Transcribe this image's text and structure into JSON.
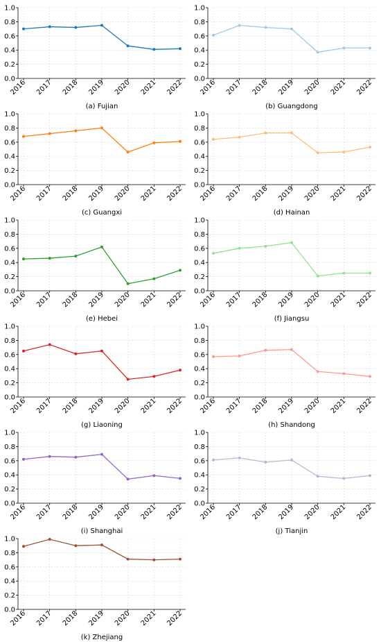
{
  "chart_data": [
    {
      "type": "line",
      "caption": "(a) Fujian",
      "categories": [
        "2016",
        "2017",
        "2018",
        "2019",
        "2020",
        "2021",
        "2022"
      ],
      "values": [
        0.7,
        0.73,
        0.72,
        0.75,
        0.46,
        0.41,
        0.42
      ],
      "ylim": [
        0,
        1.0
      ],
      "yticks": [
        "0.0",
        "0.2",
        "0.4",
        "0.6",
        "0.8",
        "1.0"
      ],
      "color": "#1f77b4",
      "grid": true
    },
    {
      "type": "line",
      "caption": "(b) Guangdong",
      "categories": [
        "2016",
        "2017",
        "2018",
        "2019",
        "2020",
        "2021",
        "2022"
      ],
      "values": [
        0.61,
        0.75,
        0.72,
        0.7,
        0.37,
        0.43,
        0.43
      ],
      "ylim": [
        0,
        1.0
      ],
      "yticks": [
        "0.0",
        "0.2",
        "0.4",
        "0.6",
        "0.8",
        "1.0"
      ],
      "color": "#9ecae9",
      "grid": true
    },
    {
      "type": "line",
      "caption": "(c) Guangxi",
      "categories": [
        "2016",
        "2017",
        "2018",
        "2019",
        "2020",
        "2021",
        "2022"
      ],
      "values": [
        0.68,
        0.72,
        0.76,
        0.8,
        0.46,
        0.59,
        0.61
      ],
      "ylim": [
        0,
        1.0
      ],
      "yticks": [
        "0.0",
        "0.2",
        "0.4",
        "0.6",
        "0.8",
        "1.0"
      ],
      "color": "#ff7f0e",
      "grid": true
    },
    {
      "type": "line",
      "caption": "(d) Hainan",
      "categories": [
        "2016",
        "2017",
        "2018",
        "2019",
        "2020",
        "2021",
        "2022"
      ],
      "values": [
        0.64,
        0.67,
        0.73,
        0.73,
        0.45,
        0.46,
        0.53
      ],
      "ylim": [
        0,
        1.0
      ],
      "yticks": [
        "0.0",
        "0.2",
        "0.4",
        "0.6",
        "0.8",
        "1.0"
      ],
      "color": "#ffbb78",
      "grid": true
    },
    {
      "type": "line",
      "caption": "(e) Hebei",
      "categories": [
        "2016",
        "2017",
        "2018",
        "2019",
        "2020",
        "2021",
        "2022"
      ],
      "values": [
        0.45,
        0.46,
        0.49,
        0.62,
        0.1,
        0.17,
        0.29
      ],
      "ylim": [
        0,
        1.0
      ],
      "yticks": [
        "0.0",
        "0.2",
        "0.4",
        "0.6",
        "0.8",
        "1.0"
      ],
      "color": "#2ca02c",
      "grid": true
    },
    {
      "type": "line",
      "caption": "(f) Jiangsu",
      "categories": [
        "2016",
        "2017",
        "2018",
        "2019",
        "2020",
        "2021",
        "2022"
      ],
      "values": [
        0.53,
        0.6,
        0.63,
        0.68,
        0.21,
        0.25,
        0.25
      ],
      "ylim": [
        0,
        1.0
      ],
      "yticks": [
        "0.0",
        "0.2",
        "0.4",
        "0.6",
        "0.8",
        "1.0"
      ],
      "color": "#8fe38f",
      "grid": true
    },
    {
      "type": "line",
      "caption": "(g) Liaoning",
      "categories": [
        "2016",
        "2017",
        "2018",
        "2019",
        "2020",
        "2021",
        "2022"
      ],
      "values": [
        0.65,
        0.74,
        0.61,
        0.65,
        0.25,
        0.29,
        0.38
      ],
      "ylim": [
        0,
        1.0
      ],
      "yticks": [
        "0.0",
        "0.2",
        "0.4",
        "0.6",
        "0.8",
        "1.0"
      ],
      "color": "#d62728",
      "grid": true
    },
    {
      "type": "line",
      "caption": "(h) Shandong",
      "categories": [
        "2016",
        "2017",
        "2018",
        "2019",
        "2020",
        "2021",
        "2022"
      ],
      "values": [
        0.57,
        0.58,
        0.66,
        0.67,
        0.36,
        0.33,
        0.29
      ],
      "ylim": [
        0,
        1.0
      ],
      "yticks": [
        "0.0",
        "0.2",
        "0.4",
        "0.6",
        "0.8",
        "1.0"
      ],
      "color": "#ff9896",
      "grid": true
    },
    {
      "type": "line",
      "caption": "(i) Shanghai",
      "categories": [
        "2016",
        "2017",
        "2018",
        "2019",
        "2020",
        "2021",
        "2022"
      ],
      "values": [
        0.62,
        0.66,
        0.65,
        0.69,
        0.34,
        0.39,
        0.35
      ],
      "ylim": [
        0,
        1.0
      ],
      "yticks": [
        "0.0",
        "0.2",
        "0.4",
        "0.6",
        "0.8",
        "1.0"
      ],
      "color": "#9467bd",
      "grid": true
    },
    {
      "type": "line",
      "caption": "(j) Tianjin",
      "categories": [
        "2016",
        "2017",
        "2018",
        "2019",
        "2020",
        "2021",
        "2022"
      ],
      "values": [
        0.61,
        0.64,
        0.58,
        0.61,
        0.38,
        0.35,
        0.39
      ],
      "ylim": [
        0,
        1.0
      ],
      "yticks": [
        "0.0",
        "0.2",
        "0.4",
        "0.6",
        "0.8",
        "1.0"
      ],
      "color": "#c5b0d5",
      "grid": true
    },
    {
      "type": "line",
      "caption": "(k) Zhejiang",
      "categories": [
        "2016",
        "2017",
        "2018",
        "2019",
        "2020",
        "2021",
        "2022"
      ],
      "values": [
        0.89,
        0.99,
        0.9,
        0.91,
        0.71,
        0.7,
        0.71
      ],
      "ylim": [
        0,
        1.0
      ],
      "yticks": [
        "0.0",
        "0.2",
        "0.4",
        "0.6",
        "0.8",
        "1.0"
      ],
      "color": "#a0522d",
      "grid": true
    }
  ]
}
